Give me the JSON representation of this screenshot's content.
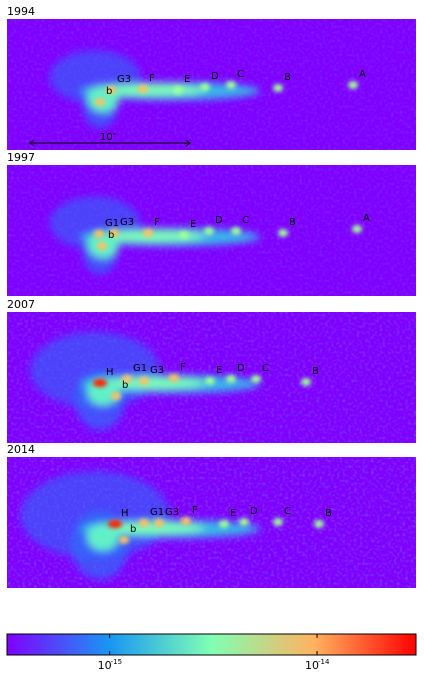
{
  "panels": [
    {
      "year": "1994",
      "knots": [
        "G3",
        "F",
        "E",
        "D",
        "C",
        "B",
        "A",
        "b"
      ],
      "scale_bar": "10″"
    },
    {
      "year": "1997",
      "knots": [
        "G1",
        "G3",
        "F",
        "E",
        "D",
        "C",
        "B",
        "A",
        "b"
      ]
    },
    {
      "year": "2007",
      "knots": [
        "H",
        "G1",
        "G3",
        "F",
        "E",
        "D",
        "C",
        "B",
        "b"
      ]
    },
    {
      "year": "2014",
      "knots": [
        "H",
        "G1",
        "G3",
        "F",
        "E",
        "D",
        "C",
        "B",
        "b"
      ]
    }
  ],
  "colorbar": {
    "lim": [
      3.2e-16,
      3e-14
    ],
    "log": true,
    "ticks": [
      {
        "value": 1e-15,
        "label": "10",
        "exponent": "-15"
      },
      {
        "value": 1e-14,
        "label": "10",
        "exponent": "-14"
      }
    ]
  }
}
